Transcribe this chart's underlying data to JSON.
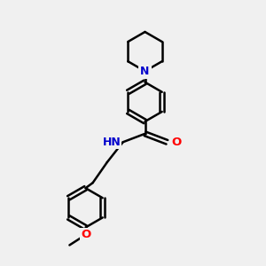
{
  "background_color": "#f0f0f0",
  "bond_color": "#000000",
  "N_color": "#0000cc",
  "O_color": "#ff0000",
  "line_width": 1.8,
  "figsize": [
    3.0,
    3.0
  ],
  "dpi": 100,
  "xlim": [
    0,
    10
  ],
  "ylim": [
    -0.5,
    10.5
  ]
}
